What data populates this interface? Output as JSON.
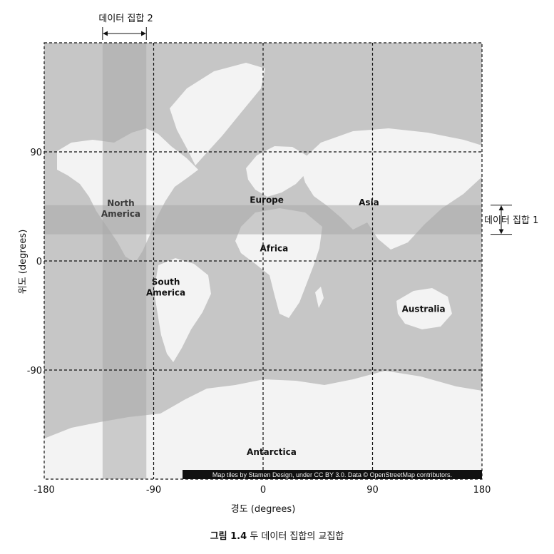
{
  "map": {
    "land_color": "#f3f3f3",
    "ocean_color": "#c6c6c6",
    "band_color": "#a9a9a9",
    "continents": [
      {
        "name": "North\nAmerica",
        "lon": -117,
        "lat": 41,
        "style": "dim"
      },
      {
        "name": "South\nAmerica",
        "lon": -80,
        "lat": -24
      },
      {
        "name": "Europe",
        "lon": 3,
        "lat": 48
      },
      {
        "name": "Asia",
        "lon": 87,
        "lat": 46
      },
      {
        "name": "Africa",
        "lon": 9,
        "lat": 8
      },
      {
        "name": "Australia",
        "lon": 132,
        "lat": -42
      },
      {
        "name": "Antarctica",
        "lon": 7,
        "lat": -160
      }
    ],
    "attribution": "Map tiles by Stamen Design, under CC BY 3.0. Data © OpenStreetMap contributors."
  },
  "chart_data": {
    "type": "map",
    "xlabel": "경도 (degrees)",
    "ylabel": "위도 (degrees)",
    "xlim": [
      -180,
      180
    ],
    "ylim": [
      -180,
      180
    ],
    "x_ticks": [
      -180,
      -90,
      0,
      90,
      180
    ],
    "x_tick_labels": [
      "-180",
      "-90",
      "0",
      "90",
      "180"
    ],
    "y_ticks": [
      90,
      0,
      -90
    ],
    "y_tick_labels": [
      "90",
      "0",
      "-90"
    ],
    "grid": {
      "lon": [
        -90,
        0,
        90
      ],
      "lat": [
        90,
        0,
        -90
      ],
      "style": "dashed"
    },
    "dataset1": {
      "label": "데이터 집합 1",
      "lat_range": [
        22,
        46
      ]
    },
    "dataset2": {
      "label": "데이터 집합 2",
      "lon_range": [
        -132,
        -96
      ]
    }
  },
  "caption": {
    "fig_label": "그림 1.4",
    "text": "두 데이터 집합의 교집합"
  }
}
